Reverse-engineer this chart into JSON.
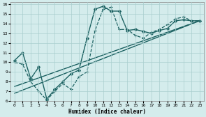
{
  "xlabel": "Humidex (Indice chaleur)",
  "bg_color": "#d4ecec",
  "grid_color": "#aacece",
  "line_color": "#1a6060",
  "xlim": [
    -0.5,
    23.5
  ],
  "ylim": [
    6,
    16.2
  ],
  "yticks": [
    6,
    7,
    8,
    9,
    10,
    11,
    12,
    13,
    14,
    15,
    16
  ],
  "xticks": [
    0,
    1,
    2,
    3,
    4,
    5,
    6,
    7,
    8,
    9,
    10,
    11,
    12,
    13,
    14,
    15,
    16,
    17,
    18,
    19,
    20,
    21,
    22,
    23
  ],
  "series": [
    {
      "x": [
        0,
        1,
        2,
        3,
        4,
        5,
        6,
        7,
        8,
        9,
        10,
        11,
        12,
        13,
        14,
        15,
        16,
        17,
        18,
        19,
        20,
        21,
        22,
        23
      ],
      "y": [
        10.2,
        11.0,
        8.3,
        9.5,
        6.2,
        7.2,
        8.0,
        8.8,
        9.2,
        12.5,
        15.5,
        15.8,
        15.3,
        15.3,
        13.3,
        13.4,
        13.2,
        13.0,
        13.3,
        13.5,
        14.3,
        14.4,
        14.3,
        14.3
      ],
      "marker": "D",
      "markersize": 2.0,
      "linewidth": 1.0,
      "linestyle": "-"
    },
    {
      "x": [
        0,
        23
      ],
      "y": [
        7.5,
        14.3
      ],
      "marker": null,
      "markersize": 0,
      "linewidth": 1.0,
      "linestyle": "-"
    },
    {
      "x": [
        0,
        23
      ],
      "y": [
        6.8,
        14.3
      ],
      "marker": null,
      "markersize": 0,
      "linewidth": 1.0,
      "linestyle": "-"
    },
    {
      "x": [
        0,
        1,
        2,
        3,
        4,
        5,
        6,
        7,
        8,
        9,
        10,
        11,
        12,
        13,
        14,
        15,
        16,
        17,
        18,
        19,
        20,
        21,
        22,
        23
      ],
      "y": [
        10.0,
        9.8,
        8.0,
        7.0,
        6.1,
        7.0,
        7.8,
        7.2,
        8.5,
        9.0,
        13.3,
        15.5,
        15.7,
        13.4,
        13.4,
        12.8,
        12.5,
        13.1,
        13.4,
        13.9,
        14.5,
        14.7,
        14.3,
        14.3
      ],
      "marker": "+",
      "markersize": 3.5,
      "linewidth": 0.9,
      "linestyle": "--"
    }
  ]
}
